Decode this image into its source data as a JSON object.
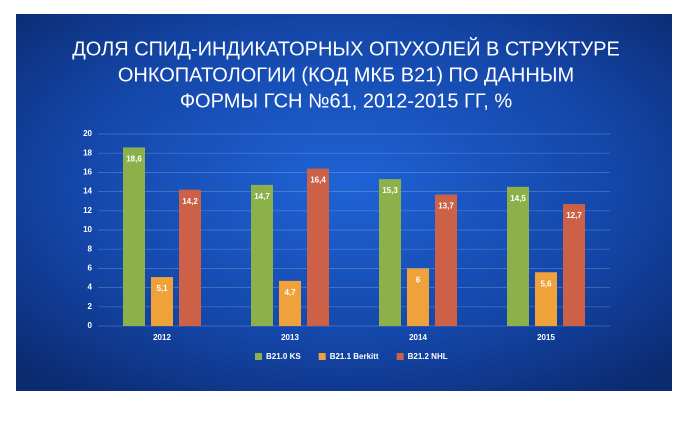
{
  "chart_data": {
    "type": "bar",
    "title": [
      "ДОЛЯ СПИД-ИНДИКАТОРНЫХ ОПУХОЛЕЙ В СТРУКТУРЕ",
      "ОНКОПАТОЛОГИИ (КОД МКБ В21) ПО ДАННЫМ",
      "ФОРМЫ ГСН №61, 2012-2015 ГГ, %"
    ],
    "categories": [
      "2012",
      "2013",
      "2014",
      "2015"
    ],
    "series": [
      {
        "name": "B21.0 KS",
        "color": "#8cb04a",
        "values": [
          18.6,
          14.7,
          15.3,
          14.5
        ],
        "value_labels": [
          "18,6",
          "14,7",
          "15,3",
          "14,5"
        ]
      },
      {
        "name": "B21.1 Berkitt",
        "color": "#f0a23a",
        "values": [
          5.1,
          4.7,
          6,
          5.6
        ],
        "value_labels": [
          "5,1",
          "4,7",
          "6",
          "5,6"
        ]
      },
      {
        "name": "B21.2 NHL",
        "color": "#cc6148",
        "values": [
          14.2,
          16.4,
          13.7,
          12.7
        ],
        "value_labels": [
          "14,2",
          "16,4",
          "13,7",
          "12,7"
        ]
      }
    ],
    "ylim": [
      0,
      20
    ],
    "yticks": [
      0,
      2,
      4,
      6,
      8,
      10,
      12,
      14,
      16,
      18,
      20
    ],
    "grid": true
  }
}
